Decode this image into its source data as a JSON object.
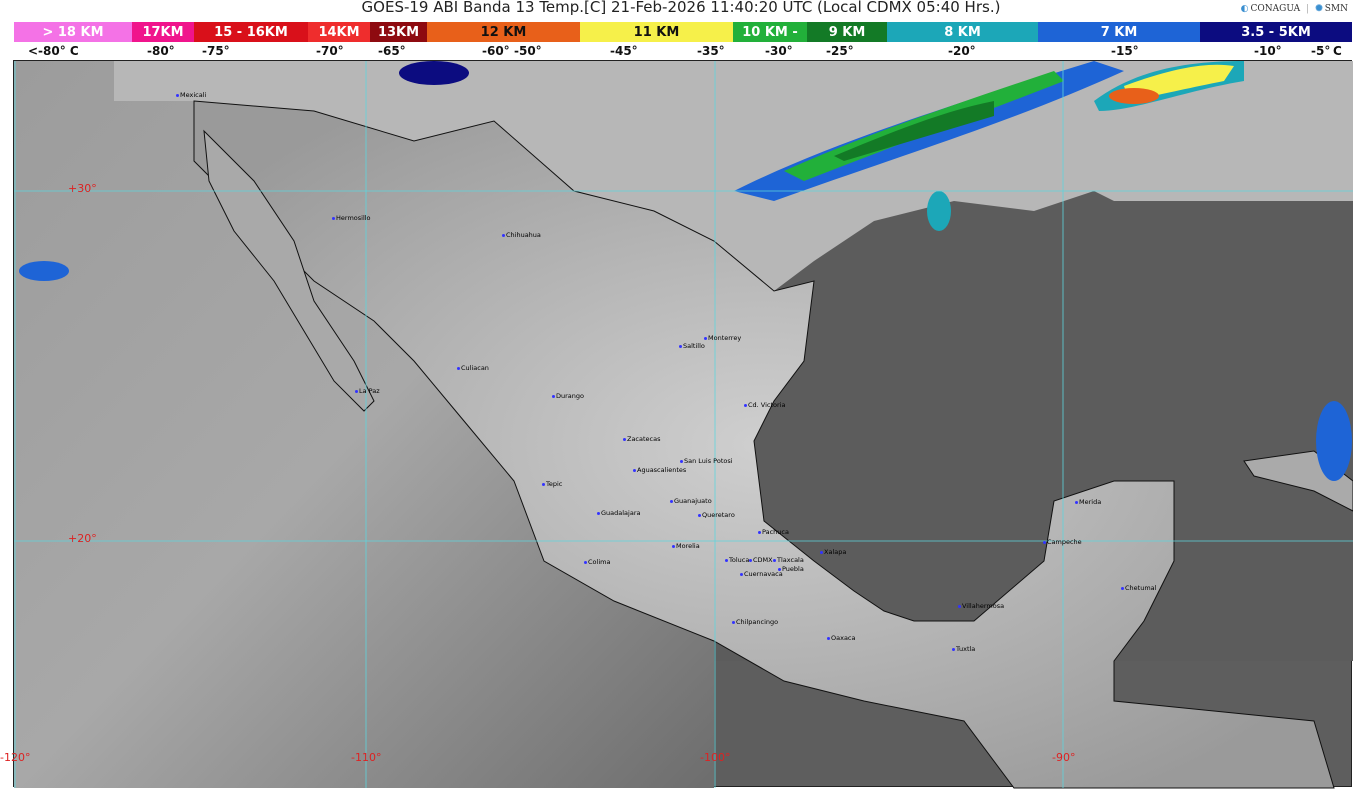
{
  "header": {
    "title": "GOES-19 ABI Banda 13 Temp.[C] 21-Feb-2026 11:40:20 UTC (Local CDMX  05:40 Hrs.)",
    "logos": [
      "CONAGUA",
      "SMN"
    ]
  },
  "legend": {
    "bands": [
      {
        "label": "> 18 KM",
        "color": "#f472e6"
      },
      {
        "label": "17KM",
        "color": "#f0148c"
      },
      {
        "label": "15 - 16KM",
        "color": "#d9101a"
      },
      {
        "label": "14KM",
        "color": "#ef2d2d"
      },
      {
        "label": "13KM",
        "color": "#8e0a10"
      },
      {
        "label": "12 KM",
        "color": "#e8601a"
      },
      {
        "label": "11 KM",
        "color": "#f6f04a"
      },
      {
        "label": "10 KM - ",
        "color": "#22b03a"
      },
      {
        "label": "9 KM",
        "color": "#137a26"
      },
      {
        "label": "8 KM",
        "color": "#1ca7b8"
      },
      {
        "label": "7 KM",
        "color": "#1e64d6"
      },
      {
        "label": "3.5 - 5KM",
        "color": "#0c0c80"
      }
    ],
    "temps": [
      "<-80° C",
      "-80°",
      "-75°",
      "-70°",
      "-65°",
      "-60°",
      "-50°",
      "-45°",
      "-35°",
      "-30°",
      "-25°",
      "-20°",
      "-15°",
      "-10°",
      "-5°",
      "C"
    ]
  },
  "map": {
    "lon_labels": [
      "-120°",
      "-110°",
      "-100°",
      "-90°"
    ],
    "lat_labels": [
      "+30°",
      "+20°"
    ],
    "cities": [
      "Mexicali",
      "Hermosillo",
      "Chihuahua",
      "Culiacan",
      "La Paz",
      "Durango",
      "Saltillo",
      "Monterrey",
      "Cd. Victoria",
      "Zacatecas",
      "San Luis Potosi",
      "Aguascalientes",
      "Tepic",
      "Guanajuato",
      "Guadalajara",
      "Queretaro",
      "Pachuca",
      "Morelia",
      "Xalapa",
      "Colima",
      "Toluca",
      "CDMX",
      "Tlaxcala",
      "Puebla",
      "Cuernavaca",
      "Chilpancingo",
      "Oaxaca",
      "Villahermosa",
      "Tuxtla",
      "Merida",
      "Campeche",
      "Chetumal"
    ]
  }
}
